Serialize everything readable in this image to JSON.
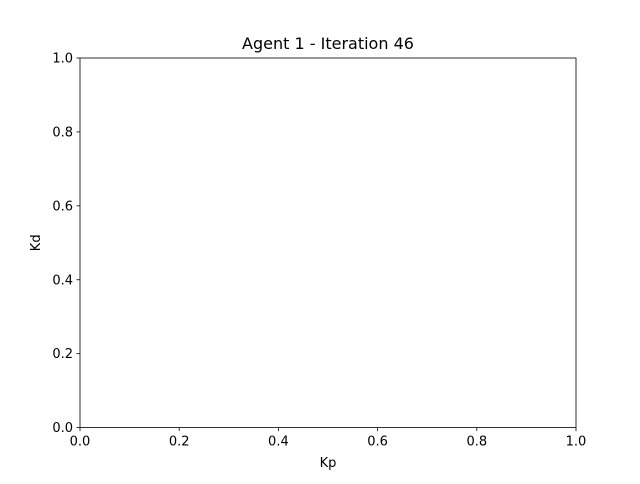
{
  "chart_data": {
    "type": "scatter",
    "title": "Agent 1 - Iteration 46",
    "xlabel": "Kp",
    "ylabel": "Kd",
    "xlim": [
      0.0,
      1.0
    ],
    "ylim": [
      0.0,
      1.0
    ],
    "xticks": [
      "0.0",
      "0.2",
      "0.4",
      "0.6",
      "0.8",
      "1.0"
    ],
    "yticks": [
      "0.0",
      "0.2",
      "0.4",
      "0.6",
      "0.8",
      "1.0"
    ],
    "grid": false,
    "series": [
      {
        "x": [],
        "y": []
      }
    ]
  }
}
